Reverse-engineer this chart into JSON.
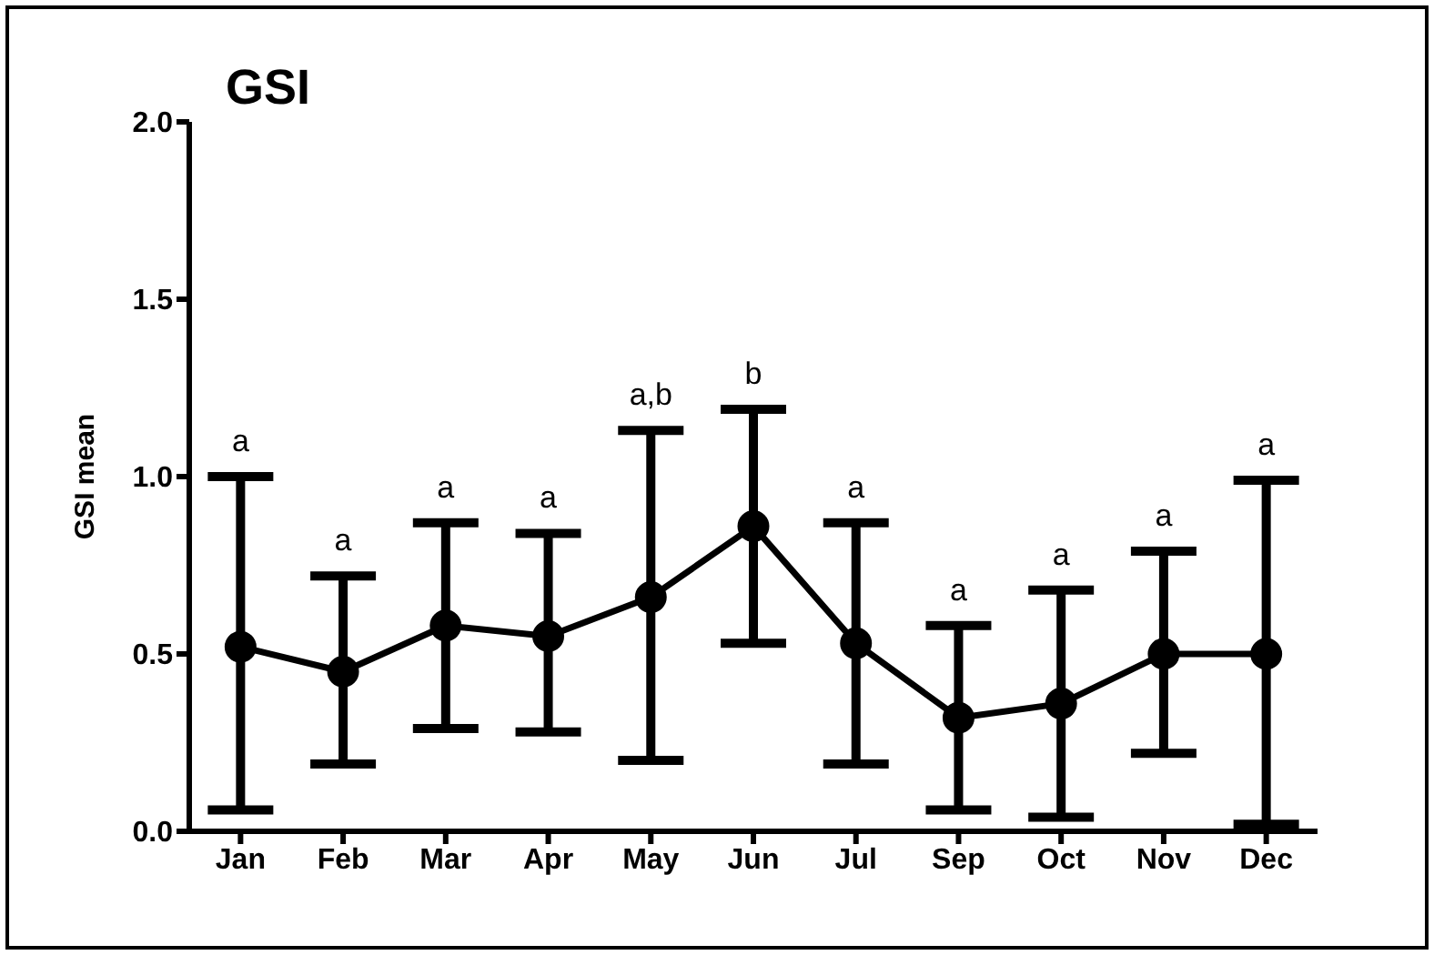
{
  "chart_data": {
    "type": "line",
    "title": "GSI",
    "ylabel": "GSI mean",
    "categories": [
      "Jan",
      "Feb",
      "Mar",
      "Apr",
      "May",
      "Jun",
      "Jul",
      "Sep",
      "Oct",
      "Nov",
      "Dec"
    ],
    "series": [
      {
        "color": "#000000",
        "values": [
          0.52,
          0.45,
          0.58,
          0.55,
          0.66,
          0.86,
          0.53,
          0.32,
          0.36,
          0.5,
          0.5
        ],
        "errors": [
          [
            0.06,
            1.0
          ],
          [
            0.19,
            0.72
          ],
          [
            0.29,
            0.87
          ],
          [
            0.28,
            0.84
          ],
          [
            0.2,
            1.13
          ],
          [
            0.53,
            1.19
          ],
          [
            0.19,
            0.87
          ],
          [
            0.06,
            0.58
          ],
          [
            0.04,
            0.68
          ],
          [
            0.22,
            0.79
          ],
          [
            0.02,
            0.99
          ]
        ]
      }
    ],
    "ylim": [
      0,
      2
    ],
    "yticks": [
      {
        "value": 0,
        "label": "0.0"
      },
      0.5,
      {
        "value": 1,
        "label": "1.0"
      },
      1.5,
      {
        "value": 2,
        "label": "2.0"
      }
    ],
    "grid": false,
    "legend": false,
    "marker": "circle",
    "line_style": "solid",
    "annotations": [
      "a",
      "a",
      "a",
      "a",
      "a,b",
      "b",
      "a",
      "a",
      "a",
      "a",
      "a"
    ]
  }
}
